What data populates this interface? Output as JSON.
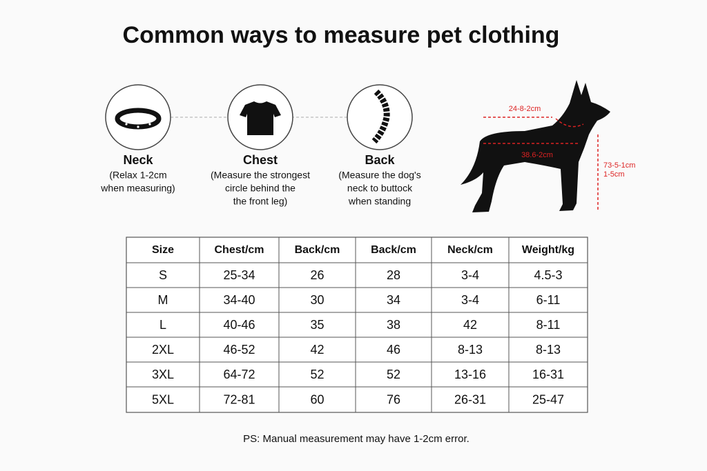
{
  "title": "Common ways to measure pet clothing",
  "items": [
    {
      "label": "Neck",
      "lines": [
        "(Relax 1-2cm",
        "when measuring)"
      ]
    },
    {
      "label": "Chest",
      "lines": [
        "(Measure the strongest",
        "circle behind the",
        "the front leg)"
      ]
    },
    {
      "label": "Back",
      "lines": [
        "(Measure the dog's",
        "neck to buttock",
        "when standing"
      ]
    }
  ],
  "dog": {
    "neck": "24-8-2cm",
    "back": "38.6-2cm",
    "height": [
      "73-5-1cm",
      "1-5cm"
    ]
  },
  "table": {
    "header": [
      "Size",
      "Chest/cm",
      "Back/cm",
      "Back/cm",
      "Neck/cm",
      "Weight/kg"
    ],
    "rows": [
      [
        "S",
        "25-34",
        "26",
        "28",
        "3-4",
        "4.5-3"
      ],
      [
        "M",
        "34-40",
        "30",
        "34",
        "3-4",
        "6-11"
      ],
      [
        "L",
        "40-46",
        "35",
        "38",
        "42",
        "8-11"
      ],
      [
        "2XL",
        "46-52",
        "42",
        "46",
        "8-13",
        "8-13"
      ],
      [
        "3XL",
        "64-72",
        "52",
        "52",
        "13-16",
        "16-31"
      ],
      [
        "5XL",
        "72-81",
        "60",
        "76",
        "26-31",
        "25-47"
      ]
    ]
  },
  "note": "PS: Manual measurement may have 1-2cm error."
}
